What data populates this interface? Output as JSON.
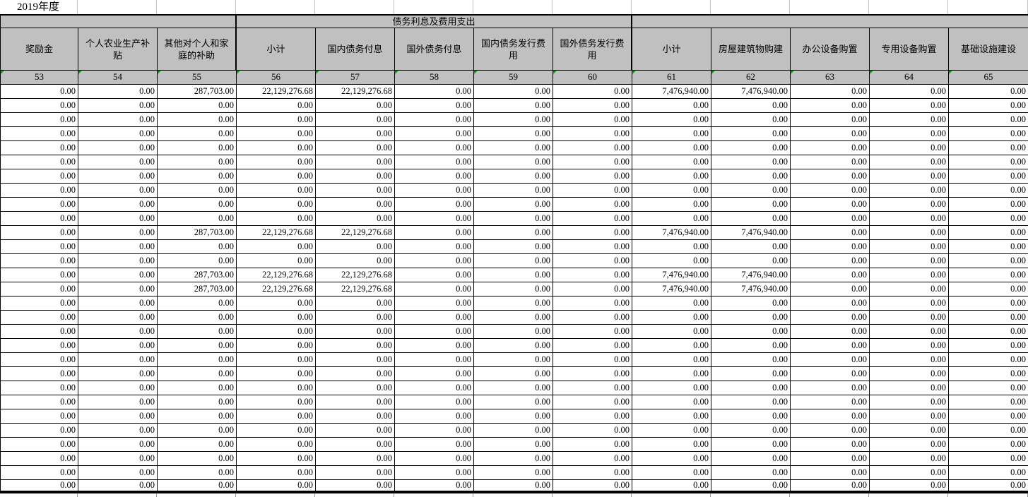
{
  "sheet": {
    "year_label": "2019年度",
    "colors": {
      "header_bg": "#c0c0c0",
      "grid_black": "#000000",
      "light_grid": "#c6c6c6",
      "error_triangle_green": "#149414"
    },
    "group_headers": [
      {
        "label": "",
        "span_columns": 3
      },
      {
        "label": "债务利息及费用支出",
        "span_columns": 5
      },
      {
        "label": "",
        "span_columns": 5
      }
    ],
    "columns": [
      {
        "num": "53",
        "label": "奖励金"
      },
      {
        "num": "54",
        "label": "个人农业生产补贴"
      },
      {
        "num": "55",
        "label": "其他对个人和家庭的补助"
      },
      {
        "num": "56",
        "label": "小计"
      },
      {
        "num": "57",
        "label": "国内债务付息"
      },
      {
        "num": "58",
        "label": "国外债务付息"
      },
      {
        "num": "59",
        "label": "国内债务发行费用"
      },
      {
        "num": "60",
        "label": "国外债务发行费用"
      },
      {
        "num": "61",
        "label": "小计"
      },
      {
        "num": "62",
        "label": "房屋建筑物购建"
      },
      {
        "num": "63",
        "label": "办公设备购置"
      },
      {
        "num": "64",
        "label": "专用设备购置"
      },
      {
        "num": "65",
        "label": "基础设施建设"
      }
    ],
    "rows": [
      [
        "0.00",
        "0.00",
        "287,703.00",
        "22,129,276.68",
        "22,129,276.68",
        "0.00",
        "0.00",
        "0.00",
        "7,476,940.00",
        "7,476,940.00",
        "0.00",
        "0.00",
        "0.00"
      ],
      [
        "0.00",
        "0.00",
        "0.00",
        "0.00",
        "0.00",
        "0.00",
        "0.00",
        "0.00",
        "0.00",
        "0.00",
        "0.00",
        "0.00",
        "0.00"
      ],
      [
        "0.00",
        "0.00",
        "0.00",
        "0.00",
        "0.00",
        "0.00",
        "0.00",
        "0.00",
        "0.00",
        "0.00",
        "0.00",
        "0.00",
        "0.00"
      ],
      [
        "0.00",
        "0.00",
        "0.00",
        "0.00",
        "0.00",
        "0.00",
        "0.00",
        "0.00",
        "0.00",
        "0.00",
        "0.00",
        "0.00",
        "0.00"
      ],
      [
        "0.00",
        "0.00",
        "0.00",
        "0.00",
        "0.00",
        "0.00",
        "0.00",
        "0.00",
        "0.00",
        "0.00",
        "0.00",
        "0.00",
        "0.00"
      ],
      [
        "0.00",
        "0.00",
        "0.00",
        "0.00",
        "0.00",
        "0.00",
        "0.00",
        "0.00",
        "0.00",
        "0.00",
        "0.00",
        "0.00",
        "0.00"
      ],
      [
        "0.00",
        "0.00",
        "0.00",
        "0.00",
        "0.00",
        "0.00",
        "0.00",
        "0.00",
        "0.00",
        "0.00",
        "0.00",
        "0.00",
        "0.00"
      ],
      [
        "0.00",
        "0.00",
        "0.00",
        "0.00",
        "0.00",
        "0.00",
        "0.00",
        "0.00",
        "0.00",
        "0.00",
        "0.00",
        "0.00",
        "0.00"
      ],
      [
        "0.00",
        "0.00",
        "0.00",
        "0.00",
        "0.00",
        "0.00",
        "0.00",
        "0.00",
        "0.00",
        "0.00",
        "0.00",
        "0.00",
        "0.00"
      ],
      [
        "0.00",
        "0.00",
        "0.00",
        "0.00",
        "0.00",
        "0.00",
        "0.00",
        "0.00",
        "0.00",
        "0.00",
        "0.00",
        "0.00",
        "0.00"
      ],
      [
        "0.00",
        "0.00",
        "287,703.00",
        "22,129,276.68",
        "22,129,276.68",
        "0.00",
        "0.00",
        "0.00",
        "7,476,940.00",
        "7,476,940.00",
        "0.00",
        "0.00",
        "0.00"
      ],
      [
        "0.00",
        "0.00",
        "0.00",
        "0.00",
        "0.00",
        "0.00",
        "0.00",
        "0.00",
        "0.00",
        "0.00",
        "0.00",
        "0.00",
        "0.00"
      ],
      [
        "0.00",
        "0.00",
        "0.00",
        "0.00",
        "0.00",
        "0.00",
        "0.00",
        "0.00",
        "0.00",
        "0.00",
        "0.00",
        "0.00",
        "0.00"
      ],
      [
        "0.00",
        "0.00",
        "287,703.00",
        "22,129,276.68",
        "22,129,276.68",
        "0.00",
        "0.00",
        "0.00",
        "7,476,940.00",
        "7,476,940.00",
        "0.00",
        "0.00",
        "0.00"
      ],
      [
        "0.00",
        "0.00",
        "287,703.00",
        "22,129,276.68",
        "22,129,276.68",
        "0.00",
        "0.00",
        "0.00",
        "7,476,940.00",
        "7,476,940.00",
        "0.00",
        "0.00",
        "0.00"
      ],
      [
        "0.00",
        "0.00",
        "0.00",
        "0.00",
        "0.00",
        "0.00",
        "0.00",
        "0.00",
        "0.00",
        "0.00",
        "0.00",
        "0.00",
        "0.00"
      ],
      [
        "0.00",
        "0.00",
        "0.00",
        "0.00",
        "0.00",
        "0.00",
        "0.00",
        "0.00",
        "0.00",
        "0.00",
        "0.00",
        "0.00",
        "0.00"
      ],
      [
        "0.00",
        "0.00",
        "0.00",
        "0.00",
        "0.00",
        "0.00",
        "0.00",
        "0.00",
        "0.00",
        "0.00",
        "0.00",
        "0.00",
        "0.00"
      ],
      [
        "0.00",
        "0.00",
        "0.00",
        "0.00",
        "0.00",
        "0.00",
        "0.00",
        "0.00",
        "0.00",
        "0.00",
        "0.00",
        "0.00",
        "0.00"
      ],
      [
        "0.00",
        "0.00",
        "0.00",
        "0.00",
        "0.00",
        "0.00",
        "0.00",
        "0.00",
        "0.00",
        "0.00",
        "0.00",
        "0.00",
        "0.00"
      ],
      [
        "0.00",
        "0.00",
        "0.00",
        "0.00",
        "0.00",
        "0.00",
        "0.00",
        "0.00",
        "0.00",
        "0.00",
        "0.00",
        "0.00",
        "0.00"
      ],
      [
        "0.00",
        "0.00",
        "0.00",
        "0.00",
        "0.00",
        "0.00",
        "0.00",
        "0.00",
        "0.00",
        "0.00",
        "0.00",
        "0.00",
        "0.00"
      ],
      [
        "0.00",
        "0.00",
        "0.00",
        "0.00",
        "0.00",
        "0.00",
        "0.00",
        "0.00",
        "0.00",
        "0.00",
        "0.00",
        "0.00",
        "0.00"
      ],
      [
        "0.00",
        "0.00",
        "0.00",
        "0.00",
        "0.00",
        "0.00",
        "0.00",
        "0.00",
        "0.00",
        "0.00",
        "0.00",
        "0.00",
        "0.00"
      ],
      [
        "0.00",
        "0.00",
        "0.00",
        "0.00",
        "0.00",
        "0.00",
        "0.00",
        "0.00",
        "0.00",
        "0.00",
        "0.00",
        "0.00",
        "0.00"
      ],
      [
        "0.00",
        "0.00",
        "0.00",
        "0.00",
        "0.00",
        "0.00",
        "0.00",
        "0.00",
        "0.00",
        "0.00",
        "0.00",
        "0.00",
        "0.00"
      ],
      [
        "0.00",
        "0.00",
        "0.00",
        "0.00",
        "0.00",
        "0.00",
        "0.00",
        "0.00",
        "0.00",
        "0.00",
        "0.00",
        "0.00",
        "0.00"
      ],
      [
        "0.00",
        "0.00",
        "0.00",
        "0.00",
        "0.00",
        "0.00",
        "0.00",
        "0.00",
        "0.00",
        "0.00",
        "0.00",
        "0.00",
        "0.00"
      ],
      [
        "0.00",
        "0.00",
        "0.00",
        "0.00",
        "0.00",
        "0.00",
        "0.00",
        "0.00",
        "0.00",
        "0.00",
        "0.00",
        "0.00",
        "0.00"
      ]
    ]
  }
}
